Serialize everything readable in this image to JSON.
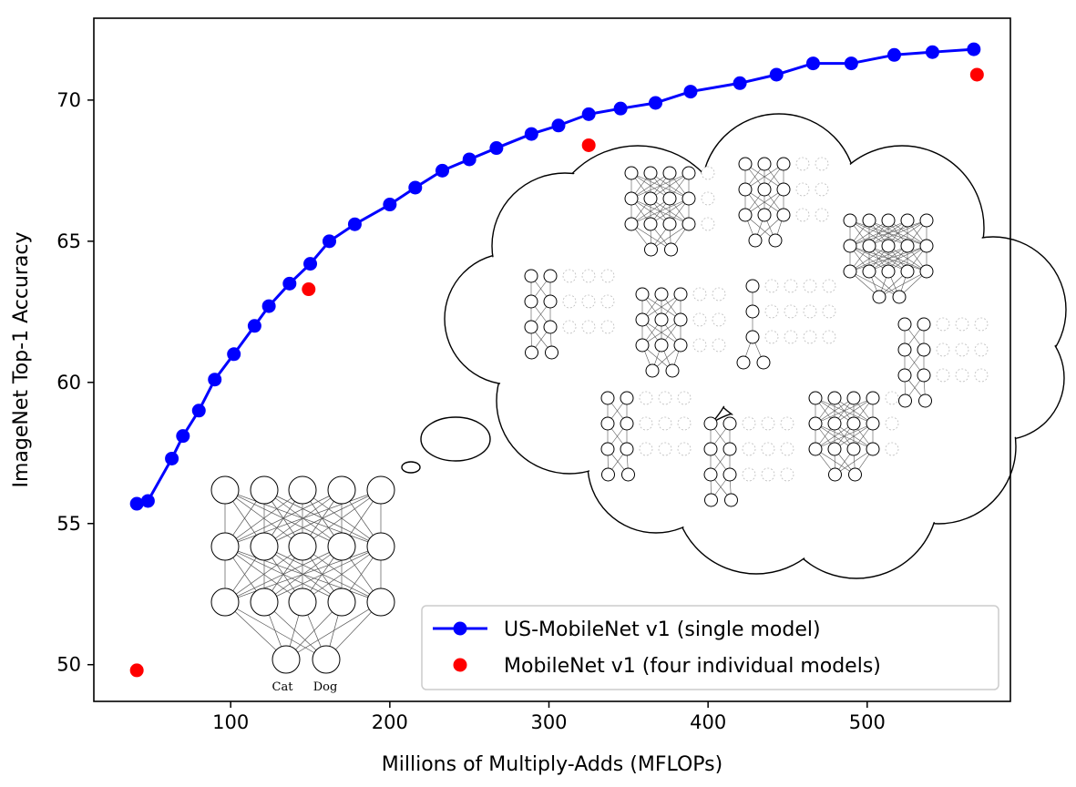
{
  "chart_data": {
    "type": "scatter",
    "xlabel": "Millions of Multiply-Adds (MFLOPs)",
    "ylabel": "ImageNet Top-1 Accuracy",
    "xlim": [
      14,
      590
    ],
    "ylim": [
      48.7,
      72.9
    ],
    "xticks": [
      "100",
      "200",
      "300",
      "400",
      "500"
    ],
    "yticks": [
      "50",
      "55",
      "60",
      "65",
      "70"
    ],
    "grid": false,
    "legend_position": "lower-right",
    "series": [
      {
        "name": "US-MobileNet v1 (single model)",
        "color": "#0000ff",
        "style": "line-with-markers",
        "x": [
          41,
          48,
          63,
          70,
          80,
          90,
          102,
          115,
          124,
          137,
          150,
          162,
          178,
          200,
          216,
          233,
          250,
          267,
          289,
          306,
          325,
          345,
          367,
          389,
          420,
          443,
          466,
          490,
          517,
          541,
          567
        ],
        "y": [
          55.7,
          55.8,
          57.3,
          58.1,
          59.0,
          60.1,
          61.0,
          62.0,
          62.7,
          63.5,
          64.2,
          65.0,
          65.6,
          66.3,
          66.9,
          67.5,
          67.9,
          68.3,
          68.8,
          69.1,
          69.5,
          69.7,
          69.9,
          70.3,
          70.6,
          70.9,
          71.3,
          71.3,
          71.6,
          71.7,
          71.8
        ]
      },
      {
        "name": "MobileNet v1 (four individual models)",
        "color": "#ff0000",
        "style": "markers",
        "x": [
          41,
          149,
          325,
          569
        ],
        "y": [
          49.8,
          63.3,
          68.4,
          70.9
        ]
      }
    ],
    "annotations": [
      "Cat",
      "Dog"
    ]
  }
}
